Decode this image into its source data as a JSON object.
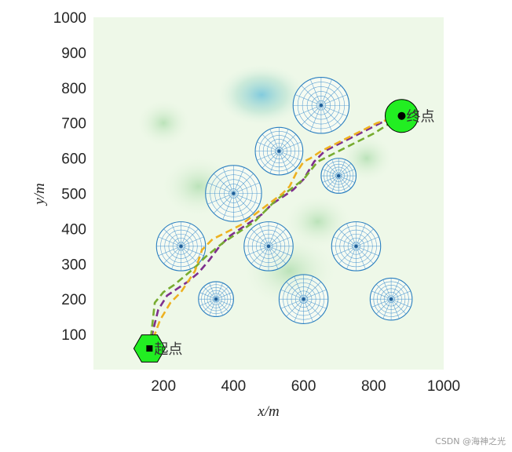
{
  "chart_data": {
    "type": "scatter",
    "xlabel": "x/m",
    "ylabel": "y/m",
    "xlim": [
      0,
      1000
    ],
    "ylim": [
      0,
      1000
    ],
    "xticks": [
      "200",
      "400",
      "600",
      "800",
      "1000"
    ],
    "yticks": [
      "100",
      "200",
      "300",
      "400",
      "500",
      "600",
      "700",
      "800",
      "900",
      "1000"
    ],
    "grid": false,
    "start": {
      "label": "起点",
      "x": 160,
      "y": 60
    },
    "goal": {
      "label": "终点",
      "x": 880,
      "y": 720
    },
    "obstacles": [
      {
        "x": 650,
        "y": 750,
        "r": 80
      },
      {
        "x": 530,
        "y": 620,
        "r": 68
      },
      {
        "x": 700,
        "y": 550,
        "r": 50
      },
      {
        "x": 400,
        "y": 500,
        "r": 80
      },
      {
        "x": 250,
        "y": 350,
        "r": 70
      },
      {
        "x": 500,
        "y": 350,
        "r": 70
      },
      {
        "x": 750,
        "y": 350,
        "r": 70
      },
      {
        "x": 350,
        "y": 200,
        "r": 50
      },
      {
        "x": 600,
        "y": 200,
        "r": 70
      },
      {
        "x": 850,
        "y": 200,
        "r": 60
      }
    ],
    "series": [
      {
        "color": "#7E2F8E",
        "x": [
          160,
          170,
          185,
          210,
          240,
          270,
          300,
          330,
          360,
          390,
          420,
          450,
          480,
          510,
          540,
          570,
          600,
          630,
          660,
          700,
          740,
          780,
          820,
          860,
          880
        ],
        "y": [
          60,
          110,
          170,
          210,
          230,
          250,
          275,
          310,
          350,
          380,
          400,
          420,
          440,
          470,
          490,
          510,
          540,
          590,
          620,
          640,
          660,
          680,
          700,
          715,
          720
        ]
      },
      {
        "color": "#77AC30",
        "x": [
          160,
          165,
          175,
          200,
          230,
          260,
          290,
          320,
          345,
          370,
          400,
          430,
          460,
          490,
          520,
          560,
          600,
          640,
          680,
          720,
          760,
          800,
          840,
          880
        ],
        "y": [
          60,
          100,
          190,
          220,
          240,
          265,
          290,
          320,
          340,
          360,
          380,
          400,
          420,
          450,
          480,
          510,
          540,
          590,
          610,
          630,
          650,
          670,
          695,
          720
        ]
      },
      {
        "color": "#EDB120",
        "x": [
          160,
          175,
          190,
          220,
          250,
          270,
          290,
          310,
          340,
          380,
          420,
          460,
          500,
          540,
          560,
          580,
          600,
          620,
          650,
          690,
          730,
          770,
          810,
          850,
          880
        ],
        "y": [
          60,
          100,
          140,
          190,
          220,
          250,
          280,
          340,
          370,
          390,
          410,
          440,
          470,
          500,
          520,
          560,
          590,
          600,
          620,
          640,
          660,
          680,
          700,
          712,
          720
        ]
      }
    ]
  },
  "watermark": "CSDN @海神之光"
}
